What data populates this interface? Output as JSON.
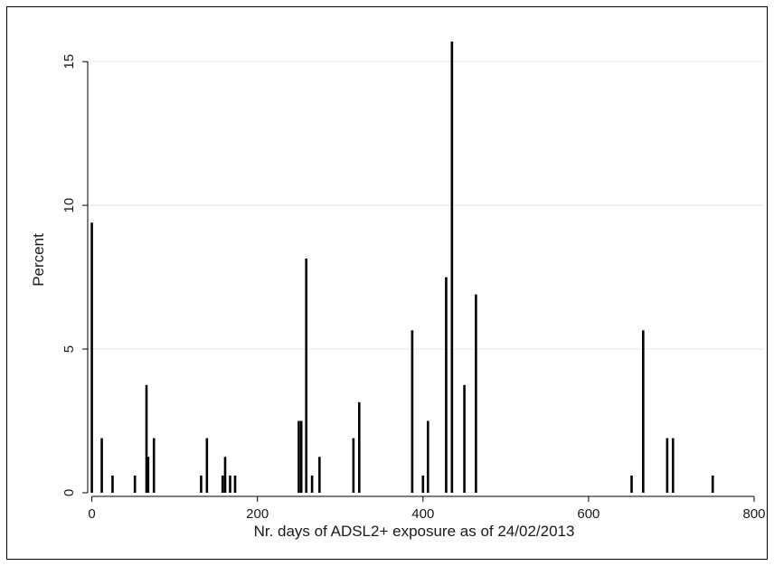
{
  "chart_data": {
    "type": "bar",
    "title": "",
    "xlabel": "Nr. days of ADSL2+ exposure as of 24/02/2013",
    "ylabel": "Percent",
    "xlim": [
      -5,
      812
    ],
    "ylim": [
      0,
      16.2
    ],
    "xticks": [
      0,
      200,
      400,
      600,
      800
    ],
    "yticks": [
      0,
      5,
      10,
      15
    ],
    "grid": true,
    "legend": "none",
    "bar_color": "#000000",
    "grid_color": "#e6e6e6",
    "series": [
      {
        "x": [
          0,
          12,
          25,
          52,
          66,
          68,
          75,
          132,
          139,
          158,
          161,
          167,
          173,
          250,
          253,
          259,
          266,
          275,
          316,
          323,
          387,
          400,
          406,
          428,
          435,
          450,
          464,
          652,
          666,
          695,
          702,
          750
        ],
        "values": [
          9.4,
          1.9,
          0.6,
          0.6,
          3.75,
          1.25,
          1.9,
          0.6,
          1.9,
          0.6,
          1.25,
          0.6,
          0.6,
          2.5,
          2.5,
          8.15,
          0.6,
          1.25,
          1.9,
          3.15,
          5.65,
          0.6,
          2.5,
          7.5,
          15.7,
          3.75,
          6.9,
          0.6,
          5.65,
          1.9,
          1.9,
          0.6
        ]
      }
    ]
  }
}
